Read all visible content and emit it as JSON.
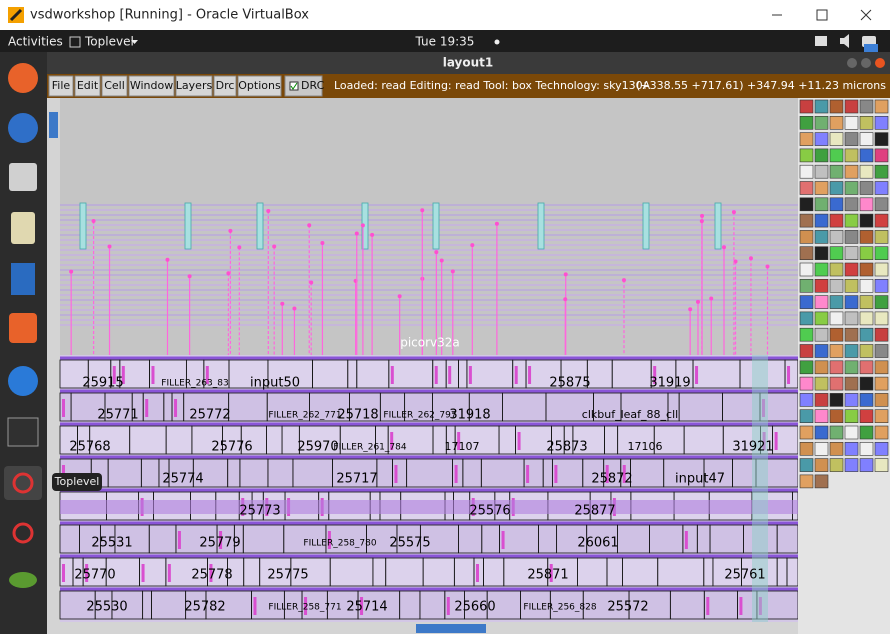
{
  "window": {
    "title": "vsdworkshop [Running] - Oracle VirtualBox"
  },
  "topbar": {
    "activities": "Activities",
    "app": "Toplevel",
    "clock": "Tue 19:35"
  },
  "magic": {
    "title": "layout1",
    "menu": [
      "File",
      "Edit",
      "Cell",
      "Window",
      "Layers",
      "Drc",
      "Options"
    ],
    "drc": "DRC",
    "status": "Loaded: read Editing: read Tool: box Technology: sky130A",
    "coords": "(+338.55 +717.61) +347.94 +11.23 microns",
    "cell_name": "picorv32a",
    "labels": [
      "25915",
      "FILLER_263_83",
      "input50",
      "25875",
      "31919",
      "25771",
      "25772",
      "FILLER_262_771",
      "25718",
      "FILLER_262_797",
      "31918",
      "clkbuf_leaf_88_cll",
      "25768",
      "25776",
      "25970",
      "FILLER_261_784",
      "17107",
      "25873",
      "17106",
      "31921",
      "25774",
      "25717",
      "25872",
      "input47",
      "25773",
      "25576",
      "25877",
      "25531",
      "25779",
      "FILLER_258_780",
      "25575",
      "26061",
      "25770",
      "25778",
      "25775",
      "25871",
      "25761",
      "25530",
      "25782",
      "FILLER_258_771",
      "25714",
      "25660",
      "FILLER_256_828",
      "25572"
    ]
  },
  "tooltip": "Toplevel"
}
